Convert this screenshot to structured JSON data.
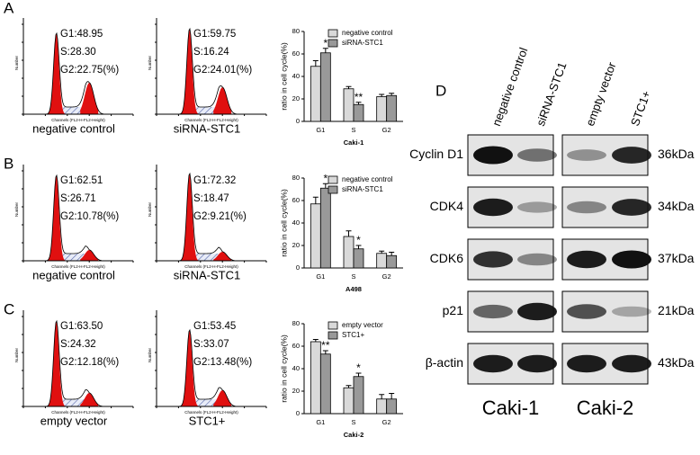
{
  "panel_labels": [
    "A",
    "B",
    "C",
    "D"
  ],
  "histograms": [
    {
      "stats": [
        "G1:48.95",
        "S:28.30",
        "G2:22.75(%)"
      ],
      "caption": "negative control",
      "x_label": "Channels (FL2-H-FL2-Height)",
      "y_label": "Number"
    },
    {
      "stats": [
        "G1:59.75",
        "S:16.24",
        "G2:24.01(%)"
      ],
      "caption": "siRNA-STC1",
      "x_label": "Channels (FL2-H-FL2-Height)",
      "y_label": "Number"
    },
    {
      "stats": [
        "G1:62.51",
        "S:26.71",
        "G2:10.78(%)"
      ],
      "caption": "negative control",
      "x_label": "Channels (FL2-H-FL2-Height)",
      "y_label": "Number"
    },
    {
      "stats": [
        "G1:72.32",
        "S:18.47",
        "G2:9.21(%)"
      ],
      "caption": "siRNA-STC1",
      "x_label": "Channels (FL2-H-FL2-Height)",
      "y_label": "Number"
    },
    {
      "stats": [
        "G1:63.50",
        "S:24.32",
        "G2:12.18(%)"
      ],
      "caption": "empty vector",
      "x_label": "Channels (FL2-H-FL2-Height)",
      "y_label": "Number"
    },
    {
      "stats": [
        "G1:53.45",
        "S:33.07",
        "G2:13.48(%)"
      ],
      "caption": "STC1+",
      "x_label": "Channels (FL2-H-FL2-Height)",
      "y_label": "Number"
    }
  ],
  "chart_data": [
    {
      "type": "bar",
      "x_label": "Caki-1",
      "y_label": "ratio in cell cycle(%)",
      "categories": [
        "G1",
        "S",
        "G2"
      ],
      "ylim": [
        0,
        80
      ],
      "yticks": [
        0,
        20,
        40,
        60,
        80
      ],
      "series": [
        {
          "name": "negative control",
          "color": "#d9d9d9",
          "values": [
            49,
            29,
            22
          ],
          "errors": [
            5,
            2,
            2
          ],
          "annotations": [
            null,
            null,
            null
          ]
        },
        {
          "name": "siRNA-STC1",
          "color": "#999999",
          "values": [
            61,
            15,
            23
          ],
          "errors": [
            4,
            2,
            2
          ],
          "annotations": [
            "*",
            "**",
            null
          ]
        }
      ]
    },
    {
      "type": "bar",
      "x_label": "A498",
      "y_label": "ratio in cell cycle(%)",
      "categories": [
        "G1",
        "S",
        "G2"
      ],
      "ylim": [
        0,
        80
      ],
      "yticks": [
        0,
        20,
        40,
        60,
        80
      ],
      "series": [
        {
          "name": "negative control",
          "color": "#d9d9d9",
          "values": [
            57,
            28,
            13
          ],
          "errors": [
            6,
            5,
            2
          ],
          "annotations": [
            null,
            null,
            null
          ]
        },
        {
          "name": "siRNA-STC1",
          "color": "#999999",
          "values": [
            71,
            17,
            11
          ],
          "errors": [
            4,
            3,
            3
          ],
          "annotations": [
            "*",
            "*",
            null
          ]
        }
      ]
    },
    {
      "type": "bar",
      "x_label": "Caki-2",
      "y_label": "ratio in cell cycle(%)",
      "categories": [
        "G1",
        "S",
        "G2"
      ],
      "ylim": [
        0,
        80
      ],
      "yticks": [
        0,
        20,
        40,
        60,
        80
      ],
      "series": [
        {
          "name": "empty vector",
          "color": "#d9d9d9",
          "values": [
            64,
            23,
            13
          ],
          "errors": [
            2,
            2,
            4
          ],
          "annotations": [
            null,
            null,
            null
          ]
        },
        {
          "name": "STC1+",
          "color": "#999999",
          "values": [
            53,
            33,
            13
          ],
          "errors": [
            3,
            3,
            5
          ],
          "annotations": [
            "**",
            "*",
            null
          ]
        }
      ]
    }
  ],
  "western_blot": {
    "lanes": [
      "negative control",
      "siRNA-STC1",
      "empty vector",
      "STC1+"
    ],
    "proteins": [
      "Cyclin D1",
      "CDK4",
      "CDK6",
      "p21",
      "β-actin"
    ],
    "sizes": [
      "36kDa",
      "34kDa",
      "37kDa",
      "21kDa",
      "43kDa"
    ],
    "groups": [
      "Caki-1",
      "Caki-2"
    ]
  }
}
